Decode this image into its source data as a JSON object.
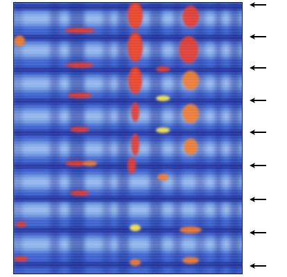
{
  "figure": {
    "colors": {
      "background": "#2a46b8",
      "deep": "#1b2a92",
      "mid": "#5f86dd",
      "light": "#a8d3f5",
      "pale": "#d7f0fb",
      "red": "#e8362a",
      "orange": "#f47a2a",
      "yellow": "#ffee44",
      "arrow": "#000000"
    },
    "markers": {
      "icon": "left-arrow-icon",
      "count": 9
    },
    "colormap": "blue-to-red"
  }
}
